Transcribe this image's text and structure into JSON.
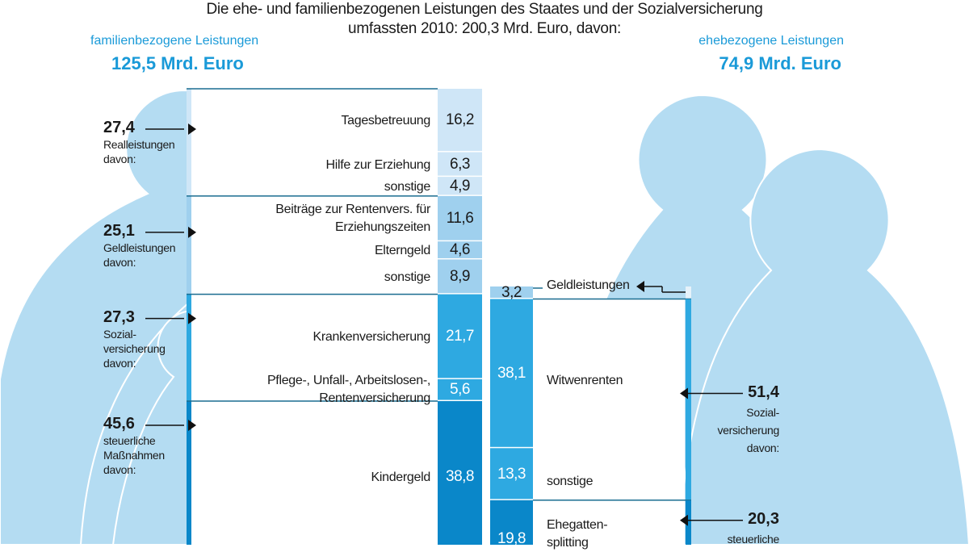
{
  "title": {
    "line1": "Die ehe- und familienbezogenen Leistungen des Staates und der Sozialversicherung",
    "line2": "umfassten 2010: 200,3 Mrd. Euro, davon:"
  },
  "colors": {
    "silhouette": "#b4dcf2",
    "real": "#cfe6f7",
    "geld": "#9fd0ee",
    "sozial": "#2ea9e1",
    "steuer": "#0a87c9",
    "accent": "#1a9ad8"
  },
  "chart_data": {
    "type": "stacked-bar",
    "unit": "Mrd. Euro",
    "groups": [
      {
        "name": "familienbezogene Leistungen",
        "total": "125,5 Mrd. Euro",
        "categories": [
          {
            "value": "27,4",
            "label": "Realleistungen davon:",
            "color_key": "real",
            "items": [
              {
                "label": "Tagesbetreuung",
                "value": 16.2
              },
              {
                "label": "Hilfe zur Erziehung",
                "value": 6.3
              },
              {
                "label": "sonstige",
                "value": 4.9
              }
            ]
          },
          {
            "value": "25,1",
            "label": "Geldleistungen davon:",
            "color_key": "geld",
            "items": [
              {
                "label": "Beiträge zur Rentenvers. für Erziehungszeiten",
                "value": 11.6
              },
              {
                "label": "Elterngeld",
                "value": 4.6
              },
              {
                "label": "sonstige",
                "value": 8.9
              }
            ]
          },
          {
            "value": "27,3",
            "label": "Sozial- versicherung davon:",
            "color_key": "sozial",
            "items": [
              {
                "label": "Krankenversicherung",
                "value": 21.7
              },
              {
                "label": "Pflege-, Unfall-, Arbeitslosen-, Rentenversicherung",
                "value": 5.6
              }
            ]
          },
          {
            "value": "45,6",
            "label": "steuerliche Maßnahmen davon:",
            "color_key": "steuer",
            "items": [
              {
                "label": "Kindergeld",
                "value": 38.8
              }
            ]
          }
        ]
      },
      {
        "name": "ehebezogene Leistungen",
        "total": "74,9 Mrd. Euro",
        "categories": [
          {
            "value": "3,2",
            "label": "Geldleistungen",
            "color_key": "geld",
            "items": [
              {
                "label": "Geldleistungen",
                "value": 3.2
              }
            ]
          },
          {
            "value": "51,4",
            "label": "Sozial- versicherung davon:",
            "color_key": "sozial",
            "items": [
              {
                "label": "Witwenrenten",
                "value": 38.1
              },
              {
                "label": "sonstige",
                "value": 13.3
              }
            ]
          },
          {
            "value": "20,3",
            "label": "steuerliche",
            "color_key": "steuer",
            "items": [
              {
                "label": "Ehegatten- splitting",
                "value": 19.8
              }
            ]
          }
        ]
      }
    ]
  }
}
